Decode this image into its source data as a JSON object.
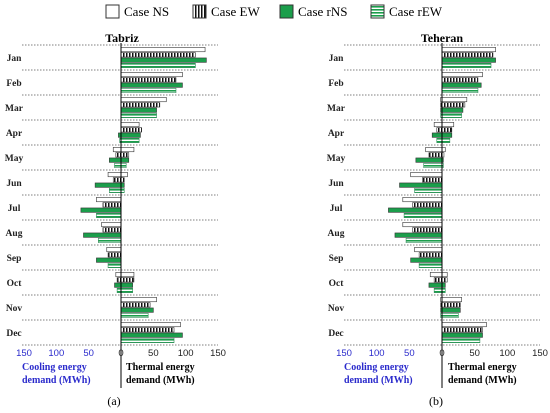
{
  "legend": {
    "items": [
      {
        "label": "Case NS",
        "pattern": "plain",
        "color": "#ffffff"
      },
      {
        "label": "Case EW",
        "pattern": "vstripe-black",
        "color": "#000000"
      },
      {
        "label": "Case rNS",
        "pattern": "solid-green",
        "color": "#1b9e4b"
      },
      {
        "label": "Case rEW",
        "pattern": "hstripe-green",
        "color": "#3cb96b"
      }
    ]
  },
  "colors": {
    "cooling_label": "#2b2bcc",
    "green_solid": "#1b9e4b",
    "green_stripe": "#5fcf8a",
    "outline": "#333333"
  },
  "axis_text": {
    "cooling": [
      "Cooling energy",
      "demand (MWh)"
    ],
    "thermal": [
      "Thermal energy",
      "demand (MWh)"
    ]
  },
  "chart_data": [
    {
      "type": "bar",
      "orientation": "horizontal-diverging",
      "title": "Tabriz",
      "panel_label": "(a)",
      "categories": [
        "Jan",
        "Feb",
        "Mar",
        "Apr",
        "May",
        "Jun",
        "Jul",
        "Aug",
        "Sep",
        "Oct",
        "Nov",
        "Dec"
      ],
      "xlim": [
        -150,
        150
      ],
      "xticks": [
        150,
        100,
        50,
        0,
        50,
        100,
        150
      ],
      "series": [
        {
          "name": "Case NS",
          "thermal": [
            130,
            95,
            70,
            28,
            20,
            10,
            0,
            0,
            0,
            20,
            55,
            92
          ],
          "cooling": [
            0,
            0,
            0,
            0,
            12,
            20,
            38,
            30,
            22,
            8,
            0,
            0
          ]
        },
        {
          "name": "Case EW",
          "thermal": [
            115,
            85,
            60,
            32,
            12,
            5,
            0,
            0,
            0,
            20,
            45,
            82
          ],
          "cooling": [
            0,
            0,
            0,
            0,
            8,
            12,
            28,
            28,
            20,
            6,
            0,
            0
          ]
        },
        {
          "name": "Case rNS",
          "thermal": [
            132,
            95,
            55,
            30,
            12,
            5,
            0,
            0,
            0,
            18,
            50,
            95
          ],
          "cooling": [
            0,
            0,
            0,
            4,
            18,
            40,
            62,
            58,
            38,
            10,
            0,
            0
          ]
        },
        {
          "name": "Case rEW",
          "thermal": [
            115,
            85,
            55,
            28,
            8,
            5,
            0,
            0,
            0,
            18,
            42,
            82
          ],
          "cooling": [
            0,
            0,
            0,
            2,
            10,
            18,
            38,
            35,
            20,
            6,
            0,
            0
          ]
        }
      ]
    },
    {
      "type": "bar",
      "orientation": "horizontal-diverging",
      "title": "Teheran",
      "panel_label": "(b)",
      "categories": [
        "Jan",
        "Feb",
        "Mar",
        "Apr",
        "May",
        "Jun",
        "Jul",
        "Aug",
        "Sep",
        "Oct",
        "Nov",
        "Dec"
      ],
      "xlim": [
        -150,
        150
      ],
      "xticks": [
        150,
        100,
        50,
        0,
        50,
        100,
        150
      ],
      "series": [
        {
          "name": "Case NS",
          "thermal": [
            82,
            62,
            38,
            18,
            5,
            0,
            0,
            0,
            0,
            8,
            30,
            68
          ],
          "cooling": [
            0,
            0,
            2,
            12,
            25,
            48,
            60,
            60,
            42,
            18,
            2,
            0
          ]
        },
        {
          "name": "Case EW",
          "thermal": [
            78,
            55,
            35,
            15,
            3,
            0,
            0,
            0,
            0,
            8,
            28,
            62
          ],
          "cooling": [
            0,
            0,
            2,
            8,
            20,
            30,
            45,
            45,
            35,
            12,
            2,
            0
          ]
        },
        {
          "name": "Case rNS",
          "thermal": [
            82,
            60,
            32,
            15,
            2,
            0,
            0,
            0,
            0,
            5,
            28,
            62
          ],
          "cooling": [
            0,
            0,
            2,
            15,
            40,
            65,
            82,
            72,
            48,
            20,
            2,
            0
          ]
        },
        {
          "name": "Case rEW",
          "thermal": [
            75,
            55,
            30,
            12,
            2,
            0,
            0,
            0,
            0,
            5,
            25,
            58
          ],
          "cooling": [
            0,
            0,
            2,
            8,
            28,
            42,
            58,
            55,
            35,
            12,
            2,
            0
          ]
        }
      ]
    }
  ]
}
